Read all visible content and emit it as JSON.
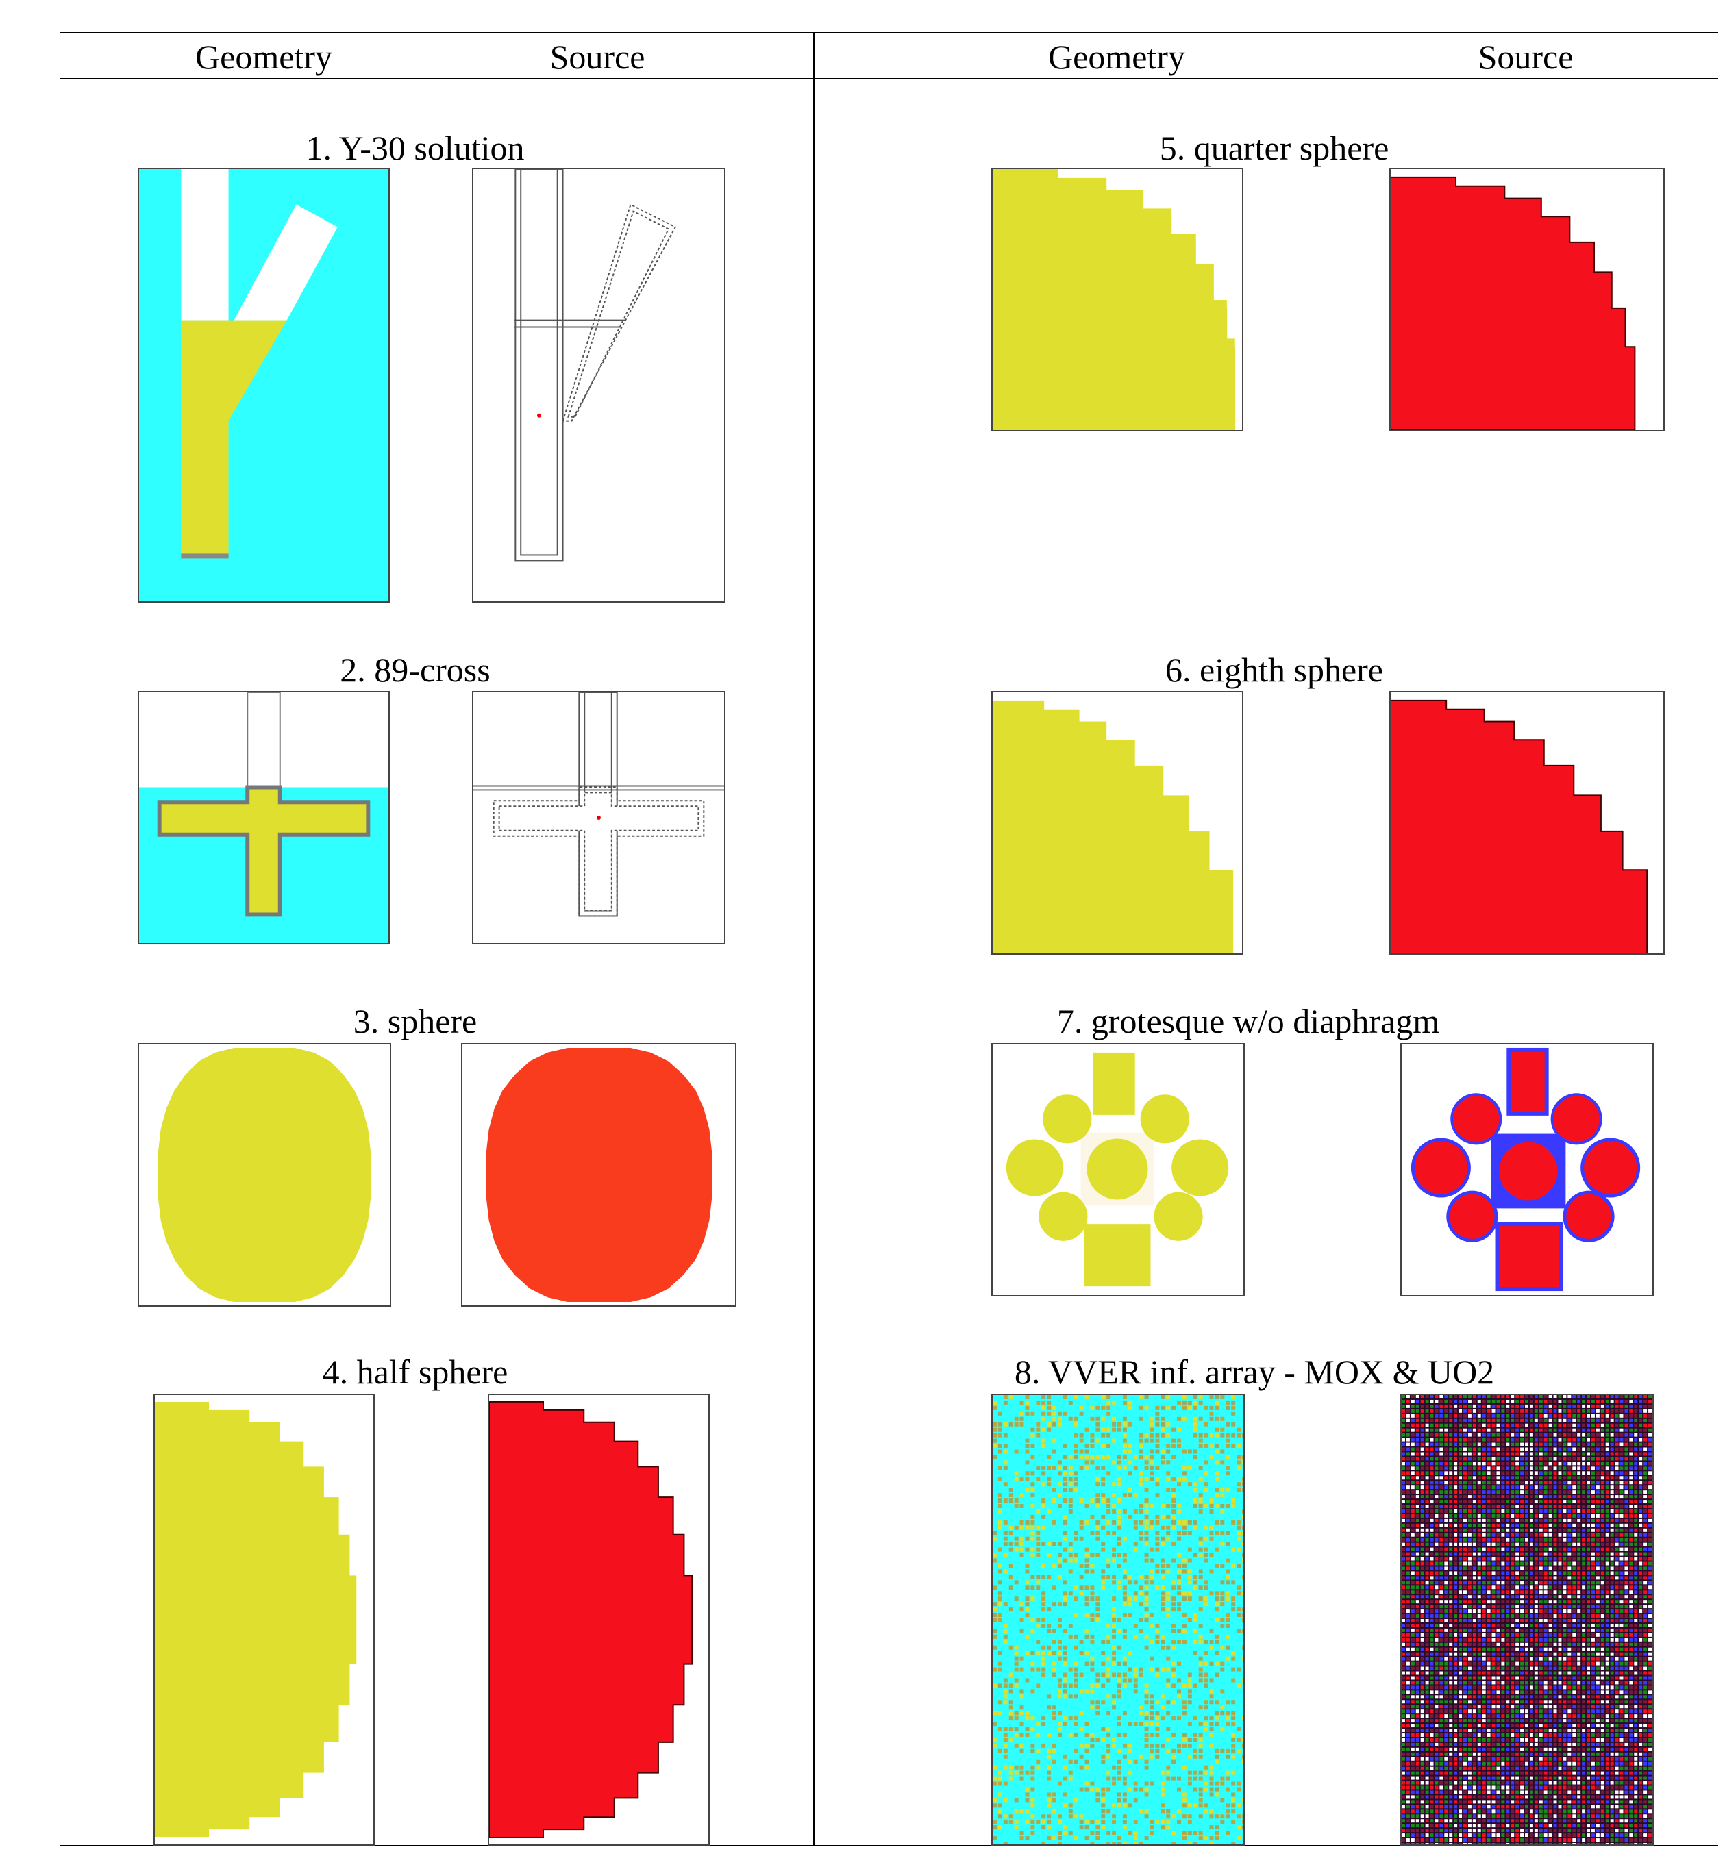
{
  "header": {
    "left_geometry": "Geometry",
    "left_source": "Source",
    "right_geometry": "Geometry",
    "right_source": "Source"
  },
  "cases": [
    {
      "label": "1. Y-30 solution"
    },
    {
      "label": "2. 89-cross"
    },
    {
      "label": "3. sphere"
    },
    {
      "label": "4. half sphere"
    },
    {
      "label": "5. quarter sphere"
    },
    {
      "label": "6. eighth sphere"
    },
    {
      "label": "7. grotesque w/o diaphragm"
    },
    {
      "label": "8. VVER inf. array - MOX & UO2"
    }
  ],
  "colors": {
    "fissile_yellow": "#dfdf30",
    "moderator_cyan": "#2ffffe",
    "source_red": "#f5101e",
    "source_orange": "#fa3c1e",
    "steel_gray": "#777777",
    "blue": "#3a3aff"
  }
}
